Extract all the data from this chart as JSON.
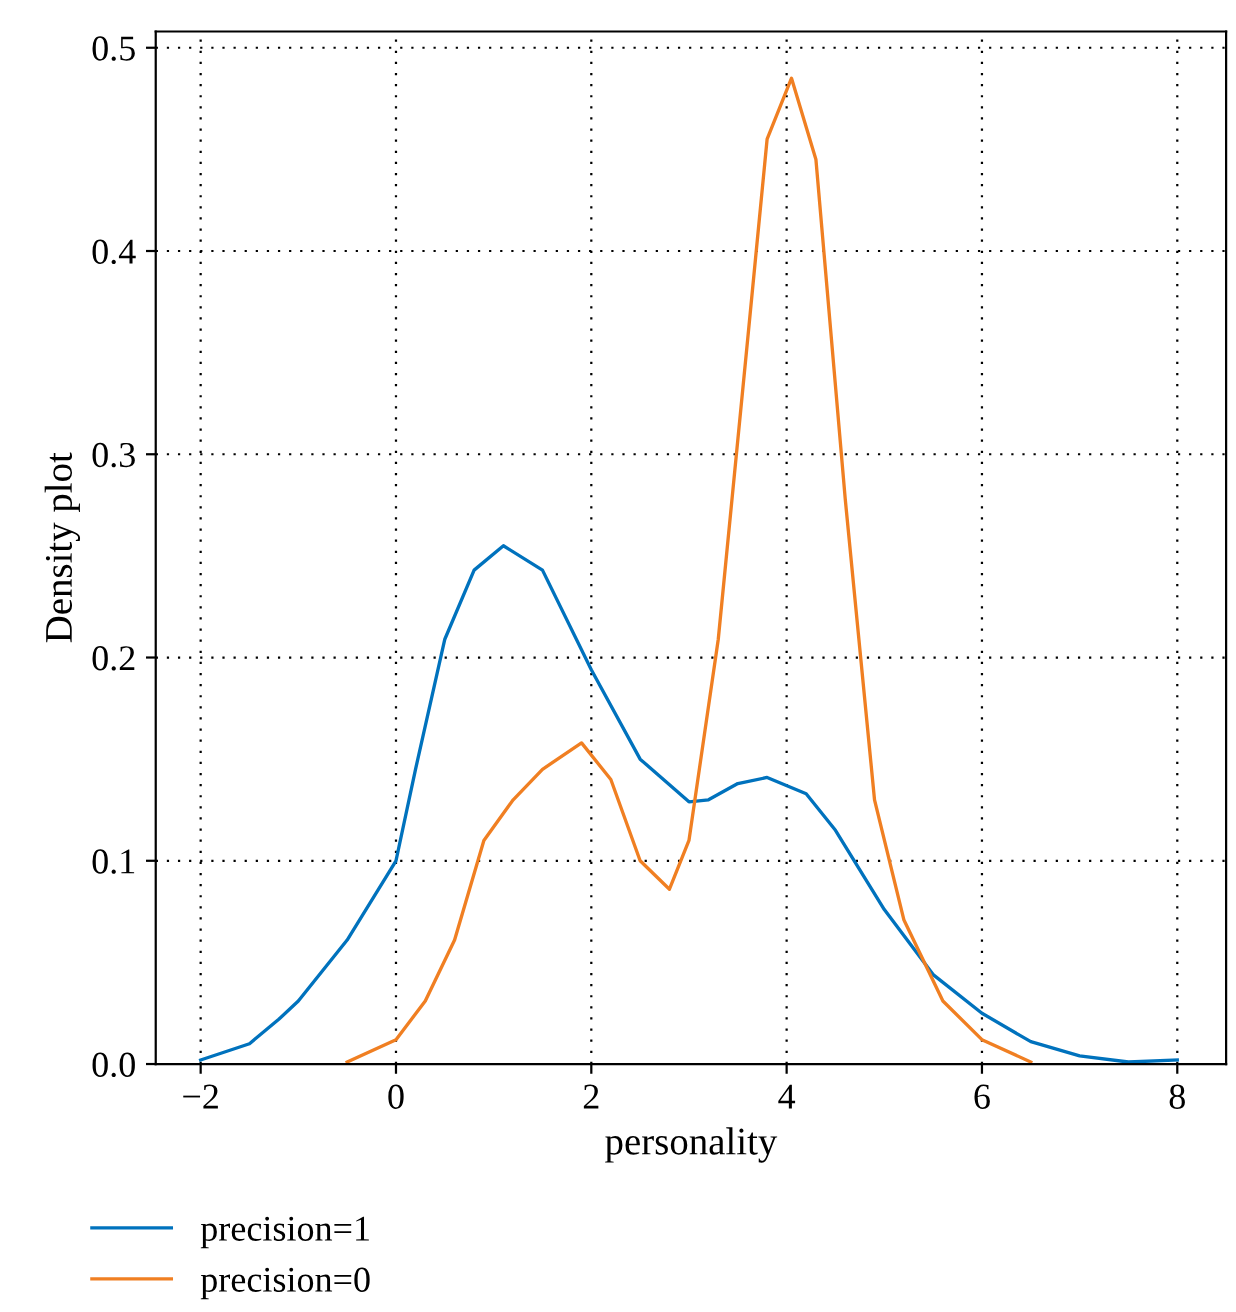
{
  "chart_data": {
    "type": "line",
    "xlabel": "personality",
    "ylabel": "Density plot",
    "xlim": [
      -2.46,
      8.5
    ],
    "ylim": [
      0,
      0.508
    ],
    "xticks": [
      {
        "value": -2,
        "label": "−2"
      },
      0,
      2,
      4,
      6,
      8
    ],
    "yticks": [
      {
        "value": 0,
        "label": "0.0"
      },
      0.1,
      0.2,
      0.3,
      0.4,
      0.5
    ],
    "grid": true,
    "legend": "bottom",
    "line_style": "solid",
    "series": [
      {
        "name": "precision=1",
        "color": "#0072bd",
        "x": [
          -2,
          -1.5,
          -1.2,
          -1,
          -0.5,
          0,
          0.2,
          0.5,
          0.8,
          1.1,
          1.5,
          2,
          2.5,
          3,
          3.2,
          3.5,
          3.8,
          4.2,
          4.5,
          5,
          5.5,
          6,
          6.5,
          7,
          7.5,
          8
        ],
        "values": [
          0.002,
          0.01,
          0.022,
          0.031,
          0.061,
          0.1,
          0.145,
          0.209,
          0.243,
          0.255,
          0.243,
          0.194,
          0.15,
          0.129,
          0.13,
          0.138,
          0.141,
          0.133,
          0.115,
          0.076,
          0.044,
          0.025,
          0.011,
          0.004,
          0.001,
          0.002
        ]
      },
      {
        "name": "precision=0",
        "color": "#f07f22",
        "x": [
          -0.5,
          0,
          0.3,
          0.6,
          0.9,
          1.2,
          1.5,
          1.9,
          2.2,
          2.5,
          2.8,
          3.0,
          3.3,
          3.6,
          3.8,
          4.05,
          4.3,
          4.6,
          4.9,
          5.2,
          5.6,
          6,
          6.5
        ],
        "values": [
          0.001,
          0.012,
          0.031,
          0.061,
          0.11,
          0.13,
          0.145,
          0.158,
          0.14,
          0.1,
          0.086,
          0.11,
          0.209,
          0.356,
          0.455,
          0.485,
          0.445,
          0.278,
          0.13,
          0.071,
          0.031,
          0.012,
          0.001
        ]
      }
    ]
  }
}
